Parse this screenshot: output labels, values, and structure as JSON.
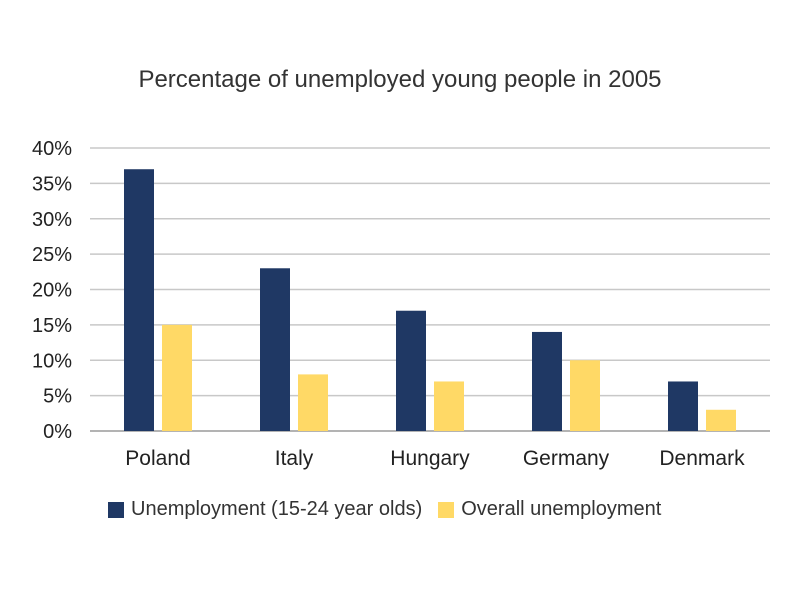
{
  "chart_data": {
    "type": "bar",
    "title": "Percentage of unemployed young people in 2005",
    "categories": [
      "Poland",
      "Italy",
      "Hungary",
      "Germany",
      "Denmark"
    ],
    "series": [
      {
        "name": "Unemployment (15-24 year olds)",
        "color": "#1f3864",
        "values": [
          37,
          23,
          17,
          14,
          7
        ]
      },
      {
        "name": "Overall unemployment",
        "color": "#ffd966",
        "values": [
          15,
          8,
          7,
          10,
          3
        ]
      }
    ],
    "ylim": [
      0,
      40
    ],
    "yticks": [
      "0%",
      "5%",
      "10%",
      "15%",
      "20%",
      "25%",
      "30%",
      "35%",
      "40%"
    ],
    "grid": true,
    "legend_position": "bottom"
  }
}
